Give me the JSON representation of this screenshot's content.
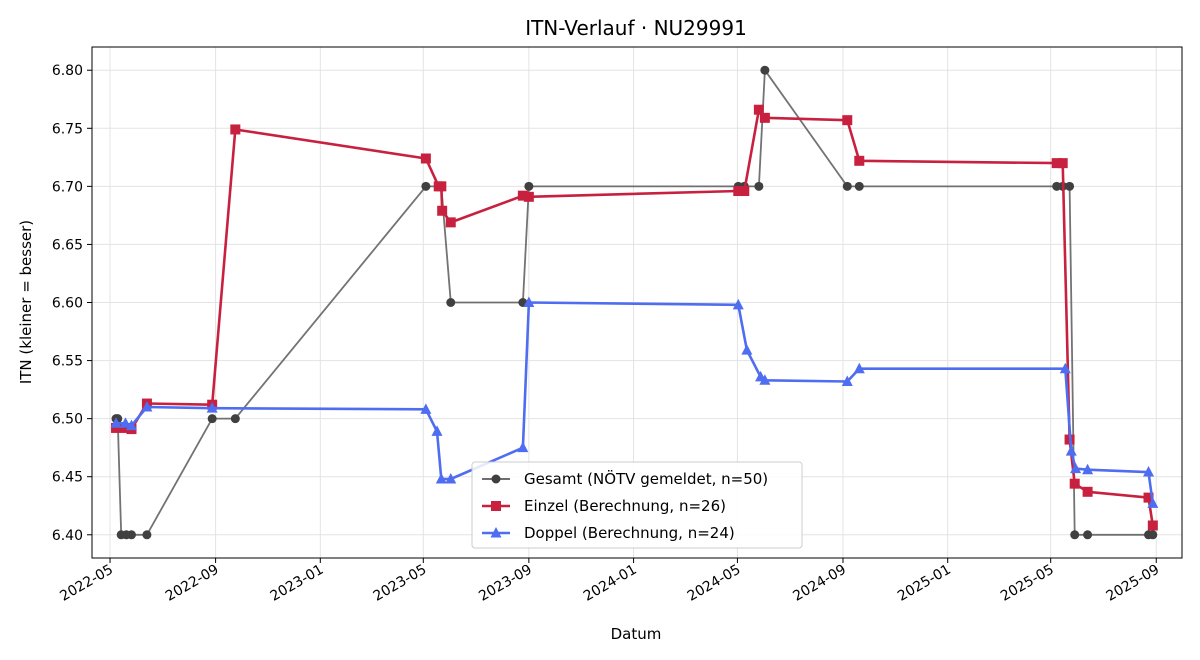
{
  "chart_data": {
    "type": "line",
    "title": "ITN-Verlauf · NU29991",
    "xlabel": "Datum",
    "ylabel": "ITN  (kleiner = besser)",
    "xlim": [
      "2022-04-10",
      "2025-10-01"
    ],
    "ylim": [
      6.38,
      6.82
    ],
    "x_ticks": [
      "2022-05",
      "2022-09",
      "2023-01",
      "2023-05",
      "2023-09",
      "2024-01",
      "2024-05",
      "2024-09",
      "2025-01",
      "2025-05",
      "2025-09"
    ],
    "y_ticks": [
      6.4,
      6.45,
      6.5,
      6.55,
      6.6,
      6.65,
      6.7,
      6.75,
      6.8
    ],
    "grid": true,
    "legend_position": "bottom-center",
    "series": [
      {
        "name": "Gesamt (NÖTV gemeldet, n=50)",
        "color": "#5a5a5a",
        "marker": "circle",
        "points": [
          [
            "2022-05-08",
            6.5
          ],
          [
            "2022-05-10",
            6.5
          ],
          [
            "2022-05-14",
            6.4
          ],
          [
            "2022-05-20",
            6.4
          ],
          [
            "2022-05-26",
            6.4
          ],
          [
            "2022-06-13",
            6.4
          ],
          [
            "2022-08-28",
            6.5
          ],
          [
            "2022-09-24",
            6.5
          ],
          [
            "2023-05-04",
            6.7
          ],
          [
            "2023-05-19",
            6.7
          ],
          [
            "2023-05-22",
            6.7
          ],
          [
            "2023-06-02",
            6.6
          ],
          [
            "2023-08-25",
            6.6
          ],
          [
            "2023-09-01",
            6.7
          ],
          [
            "2024-05-02",
            6.7
          ],
          [
            "2024-05-09",
            6.7
          ],
          [
            "2024-05-26",
            6.7
          ],
          [
            "2024-06-02",
            6.8
          ],
          [
            "2024-09-06",
            6.7
          ],
          [
            "2024-09-20",
            6.7
          ],
          [
            "2025-05-08",
            6.7
          ],
          [
            "2025-05-15",
            6.7
          ],
          [
            "2025-05-23",
            6.7
          ],
          [
            "2025-05-29",
            6.4
          ],
          [
            "2025-06-13",
            6.4
          ],
          [
            "2025-08-23",
            6.4
          ],
          [
            "2025-08-28",
            6.4
          ]
        ]
      },
      {
        "name": "Einzel (Berechnung, n=26)",
        "color": "#c8213f",
        "marker": "square",
        "points": [
          [
            "2022-05-08",
            6.492
          ],
          [
            "2022-05-19",
            6.492
          ],
          [
            "2022-05-26",
            6.491
          ],
          [
            "2022-06-13",
            6.513
          ],
          [
            "2022-08-28",
            6.512
          ],
          [
            "2022-09-24",
            6.749
          ],
          [
            "2023-05-04",
            6.724
          ],
          [
            "2023-05-19",
            6.7
          ],
          [
            "2023-05-22",
            6.7
          ],
          [
            "2023-05-23",
            6.679
          ],
          [
            "2023-06-02",
            6.669
          ],
          [
            "2023-08-25",
            6.692
          ],
          [
            "2023-09-01",
            6.691
          ],
          [
            "2024-05-02",
            6.696
          ],
          [
            "2024-05-09",
            6.696
          ],
          [
            "2024-05-26",
            6.766
          ],
          [
            "2024-06-02",
            6.759
          ],
          [
            "2024-09-06",
            6.757
          ],
          [
            "2024-09-20",
            6.722
          ],
          [
            "2025-05-08",
            6.72
          ],
          [
            "2025-05-15",
            6.72
          ],
          [
            "2025-05-23",
            6.482
          ],
          [
            "2025-05-29",
            6.444
          ],
          [
            "2025-06-13",
            6.437
          ],
          [
            "2025-08-23",
            6.432
          ],
          [
            "2025-08-28",
            6.408
          ]
        ]
      },
      {
        "name": "Doppel (Berechnung, n=24)",
        "color": "#4f6df0",
        "marker": "triangle",
        "points": [
          [
            "2022-05-08",
            6.496
          ],
          [
            "2022-05-19",
            6.496
          ],
          [
            "2022-05-26",
            6.494
          ],
          [
            "2022-06-13",
            6.51
          ],
          [
            "2022-08-28",
            6.509
          ],
          [
            "2023-05-04",
            6.508
          ],
          [
            "2023-05-17",
            6.489
          ],
          [
            "2023-05-22",
            6.448
          ],
          [
            "2023-06-02",
            6.448
          ],
          [
            "2023-08-25",
            6.475
          ],
          [
            "2023-09-01",
            6.6
          ],
          [
            "2024-05-02",
            6.598
          ],
          [
            "2024-05-12",
            6.559
          ],
          [
            "2024-05-28",
            6.536
          ],
          [
            "2024-06-02",
            6.533
          ],
          [
            "2024-09-06",
            6.532
          ],
          [
            "2024-09-20",
            6.543
          ],
          [
            "2025-05-18",
            6.543
          ],
          [
            "2025-05-25",
            6.472
          ],
          [
            "2025-05-30",
            6.457
          ],
          [
            "2025-06-13",
            6.456
          ],
          [
            "2025-08-23",
            6.454
          ],
          [
            "2025-08-28",
            6.427
          ]
        ]
      }
    ]
  }
}
